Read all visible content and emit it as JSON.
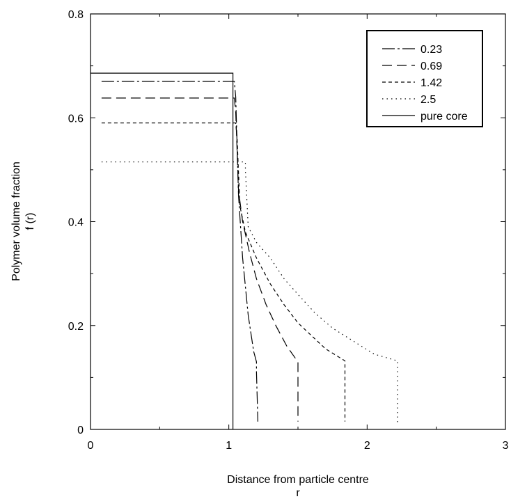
{
  "chart_data": {
    "type": "line",
    "title": "",
    "xlabel": "Distance from particle centre",
    "xlabel_symbol": "r",
    "ylabel": "Polymer volume fraction",
    "ylabel_symbol": "f (r)",
    "xlim": [
      0,
      3
    ],
    "ylim": [
      0,
      0.8
    ],
    "xticks": [
      0,
      1,
      2,
      3
    ],
    "yticks": [
      0,
      0.2,
      0.4,
      0.6,
      0.8
    ],
    "xtick_labels": [
      "0",
      "1",
      "2",
      "3"
    ],
    "ytick_labels": [
      "0",
      "0.2",
      "0.4",
      "0.6",
      "0.8"
    ],
    "grid": false,
    "legend_position": "top-right",
    "series": [
      {
        "name": "0.23",
        "dash": "dash-dot",
        "x": [
          0.08,
          1.04,
          1.05,
          1.07,
          1.1,
          1.14,
          1.18,
          1.2,
          1.2,
          1.21
        ],
        "y": [
          0.67,
          0.67,
          0.64,
          0.45,
          0.33,
          0.22,
          0.15,
          0.13,
          0.11,
          0.015
        ]
      },
      {
        "name": "0.69",
        "dash": "long-dash",
        "x": [
          0.08,
          1.04,
          1.05,
          1.07,
          1.1,
          1.15,
          1.2,
          1.27,
          1.34,
          1.42,
          1.5,
          1.5
        ],
        "y": [
          0.638,
          0.638,
          0.61,
          0.46,
          0.4,
          0.34,
          0.29,
          0.24,
          0.2,
          0.16,
          0.13,
          0.015
        ]
      },
      {
        "name": "1.42",
        "dash": "short-dash",
        "x": [
          0.08,
          1.05,
          1.06,
          1.08,
          1.12,
          1.2,
          1.3,
          1.4,
          1.5,
          1.6,
          1.7,
          1.84,
          1.84
        ],
        "y": [
          0.59,
          0.59,
          0.56,
          0.43,
          0.38,
          0.33,
          0.28,
          0.24,
          0.205,
          0.18,
          0.155,
          0.132,
          0.015
        ]
      },
      {
        "name": "2.5",
        "dash": "dotted",
        "x": [
          0.08,
          1.12,
          1.12,
          1.14,
          1.2,
          1.3,
          1.4,
          1.5,
          1.62,
          1.75,
          1.9,
          2.05,
          2.22,
          2.22
        ],
        "y": [
          0.515,
          0.515,
          0.5,
          0.39,
          0.36,
          0.33,
          0.29,
          0.26,
          0.225,
          0.195,
          0.17,
          0.145,
          0.132,
          0.01
        ]
      },
      {
        "name": "pure core",
        "dash": "solid",
        "x": [
          0.0,
          1.03,
          1.03
        ],
        "y": [
          0.686,
          0.686,
          0.0
        ]
      }
    ]
  }
}
